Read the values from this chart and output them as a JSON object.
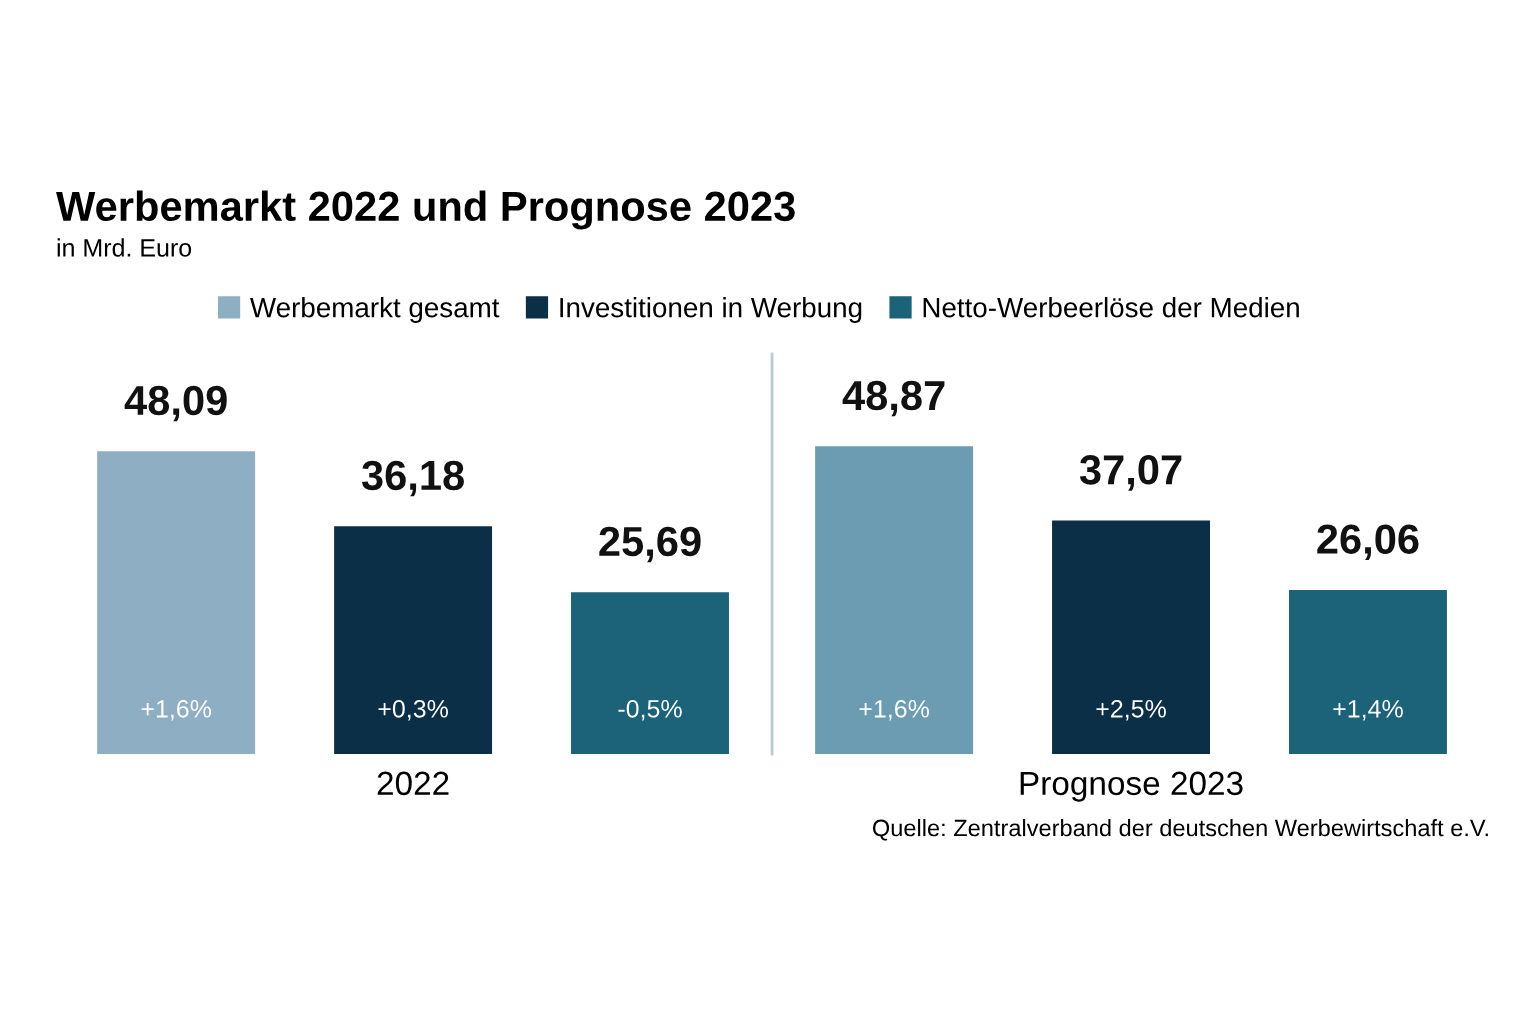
{
  "chart_data": {
    "type": "bar",
    "title": "Werbemarkt 2022 und Prognose 2023",
    "subtitle": "in Mrd. Euro",
    "categories": [
      "2022",
      "Prognose 2023"
    ],
    "series": [
      {
        "name": "Werbemarkt gesamt",
        "color": "#8eaec3",
        "colors": [
          "#8eaec3",
          "#6b9cb2"
        ],
        "values": [
          48.09,
          48.87
        ],
        "value_labels": [
          "48,09",
          "48,87"
        ]
      },
      {
        "name": "Investitionen in Werbung",
        "color": "#0b2f47",
        "values": [
          36.18,
          37.07
        ],
        "value_labels": [
          "36,18",
          "37,07"
        ]
      },
      {
        "name": "Netto-Werbeerlöse der Medien",
        "color": "#1c6278",
        "values": [
          25.69,
          26.06
        ],
        "value_labels": [
          "25,69",
          "26,06"
        ]
      }
    ],
    "annotations": [
      "+1,6%",
      "+1,6%",
      "+0,3%",
      "+2,5%",
      "-0,5%",
      "+1,4%",
      "Quelle: Zentralverband der deutschen Werbewirtschaft e.V."
    ],
    "relative": false,
    "legend": "top",
    "grid": false
  }
}
